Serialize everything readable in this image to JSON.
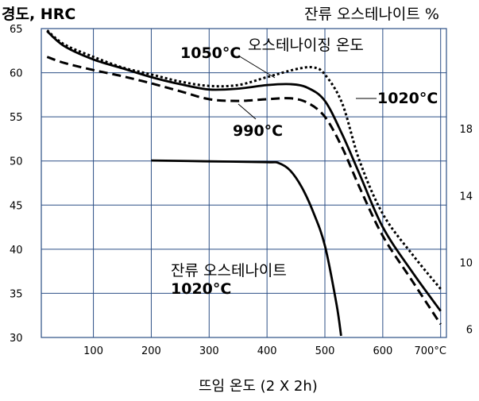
{
  "chart_data": {
    "type": "line",
    "ylabel_left": "경도, HRC",
    "ylabel_right": "잔류 오스테나이트 %",
    "xlabel": "뜨임 온도 (2 X 2h)",
    "x_tick_labels": [
      "100",
      "200",
      "300",
      "400",
      "500",
      "600",
      "700°C"
    ],
    "x_ticks": [
      100,
      200,
      300,
      400,
      500,
      600,
      700
    ],
    "xlim": [
      10,
      710
    ],
    "y_ticks": [
      30,
      35,
      40,
      45,
      50,
      55,
      60,
      65
    ],
    "y_tick_labels": [
      "30",
      "35",
      "40",
      "45",
      "50",
      "55",
      "60",
      "65"
    ],
    "ylim": [
      30,
      65
    ],
    "right_ticks": [
      6,
      10,
      14,
      18
    ],
    "right_tick_labels": [
      "6",
      "10",
      "14",
      "18"
    ],
    "right_ylim": [
      5.5,
      24
    ],
    "grid": true,
    "annotations": {
      "austenitizing_title": "오스테나이징 온도",
      "label_1050": "1050°C",
      "label_1020": "1020°C",
      "label_990": "990°C",
      "retained_title": "잔류 오스테나이트",
      "retained_temp": "1020°C"
    },
    "series": [
      {
        "name": "1050°C",
        "axis": "hardness",
        "style": "dotted",
        "x": [
          20,
          50,
          100,
          150,
          200,
          250,
          300,
          350,
          400,
          450,
          480,
          500,
          530,
          560,
          600,
          650,
          700
        ],
        "y": [
          64.8,
          63.2,
          61.8,
          60.6,
          59.8,
          59.0,
          58.5,
          58.6,
          59.5,
          60.4,
          60.6,
          59.8,
          56.5,
          50.0,
          44.0,
          39.5,
          35.5
        ]
      },
      {
        "name": "1020°C",
        "axis": "hardness",
        "style": "solid",
        "x": [
          20,
          50,
          100,
          150,
          200,
          250,
          300,
          350,
          400,
          440,
          470,
          500,
          530,
          560,
          600,
          650,
          700
        ],
        "y": [
          64.7,
          63.0,
          61.5,
          60.5,
          59.5,
          58.7,
          58.1,
          58.2,
          58.6,
          58.7,
          58.3,
          56.8,
          53.0,
          48.5,
          42.5,
          37.5,
          33.0
        ]
      },
      {
        "name": "990°C",
        "axis": "hardness",
        "style": "dashed",
        "x": [
          20,
          50,
          100,
          150,
          200,
          250,
          300,
          350,
          400,
          440,
          470,
          500,
          530,
          560,
          600,
          650,
          700
        ],
        "y": [
          61.8,
          61.1,
          60.3,
          59.6,
          58.8,
          57.9,
          57.0,
          56.8,
          57.0,
          57.1,
          56.6,
          55.0,
          51.5,
          47.0,
          41.5,
          36.5,
          31.5
        ]
      },
      {
        "name": "잔류 오스테나이트 1020°C",
        "axis": "retained_austenite",
        "style": "solid",
        "x": [
          200,
          300,
          400,
          420,
          440,
          460,
          480,
          500,
          520,
          528
        ],
        "y": [
          16.1,
          16.05,
          16.0,
          15.95,
          15.5,
          14.5,
          13.0,
          11.0,
          7.5,
          5.6
        ]
      }
    ]
  }
}
